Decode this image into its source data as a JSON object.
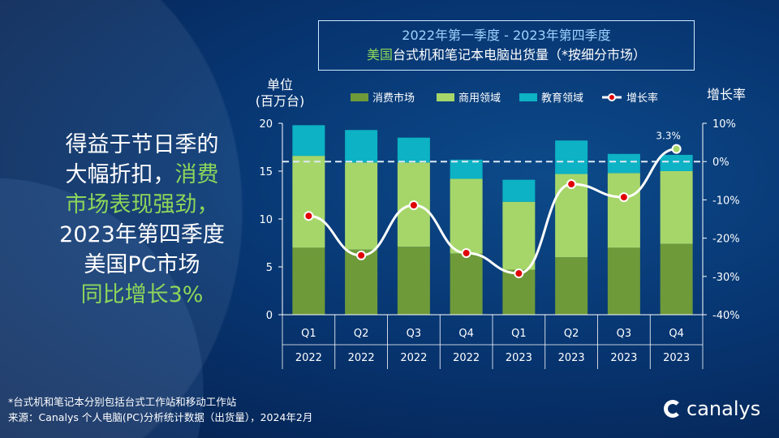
{
  "title": {
    "line1": "2022年第一季度 - 2023年第四季度",
    "line2_hl": "美国",
    "line2": "台式机和笔记本电脑出货量（*按细分市场）"
  },
  "side": {
    "l1": "得益于节日季的",
    "l2a": "大幅折扣，",
    "l2b": "消费",
    "l3": "市场表现强劲，",
    "l4": "2023年第四季度",
    "l5": "美国PC市场",
    "l6": "同比增长3%"
  },
  "footer": {
    "note": "*台式机和笔记本分别包括台式工作站和移动工作站",
    "source": "来源：Canalys 个人电脑(PC)分析统计数据（出货量），2024年2月"
  },
  "logo": {
    "text": "canalys"
  },
  "colors": {
    "consumer": "#6e9a3a",
    "commercial": "#a6d66a",
    "education": "#0db2c4",
    "line": "#ffffff",
    "point": "#e00000"
  },
  "chart_data": {
    "type": "bar",
    "ylabel": "单位\n(百万台)",
    "ylabel_l1": "单位",
    "ylabel_l2": "(百万台)",
    "y2label": "增长率",
    "ylim": [
      0,
      20
    ],
    "yticks": [
      "0",
      "5",
      "10",
      "15",
      "20"
    ],
    "y2lim": [
      -40,
      10
    ],
    "y2ticks": [
      "-40%",
      "-30%",
      "-20%",
      "-10%",
      "0%",
      "10%"
    ],
    "categories": [
      "Q1",
      "Q2",
      "Q3",
      "Q4",
      "Q1",
      "Q2",
      "Q3",
      "Q4"
    ],
    "years": [
      "2022",
      "2022",
      "2022",
      "2022",
      "2023",
      "2023",
      "2023",
      "2023"
    ],
    "series": [
      {
        "name": "消费市场",
        "values": [
          7.0,
          6.8,
          7.1,
          6.4,
          4.7,
          6.0,
          7.0,
          7.4
        ]
      },
      {
        "name": "商用领域",
        "values": [
          9.6,
          9.1,
          8.8,
          7.8,
          7.1,
          8.7,
          7.8,
          7.6
        ]
      },
      {
        "name": "教育领域",
        "values": [
          3.2,
          3.4,
          2.6,
          2.0,
          2.3,
          3.5,
          2.0,
          1.7
        ]
      },
      {
        "name": "增长率",
        "type": "line",
        "axis": "right",
        "values": [
          -14.2,
          -24.5,
          -11.4,
          -23.9,
          -29.2,
          -5.9,
          -9.3,
          3.3
        ]
      }
    ],
    "annotation": "3.3%",
    "grid": false,
    "legend": "top"
  }
}
